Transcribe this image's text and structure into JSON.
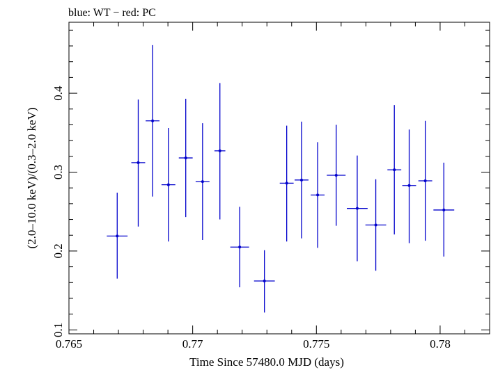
{
  "chart_data": {
    "type": "scatter",
    "title": "blue: WT − red: PC",
    "xlabel": "Time Since 57480.0 MJD (days)",
    "ylabel": "(2.0–10.0 keV)/(0.3–2.0 keV)",
    "xlim": [
      0.765,
      0.782
    ],
    "ylim": [
      0.095,
      0.49
    ],
    "x_ticks": [
      {
        "value": 0.765,
        "label": "0.765"
      },
      {
        "value": 0.77,
        "label": "0.77"
      },
      {
        "value": 0.775,
        "label": "0.775"
      },
      {
        "value": 0.78,
        "label": "0.78"
      }
    ],
    "y_ticks": [
      {
        "value": 0.1,
        "label": "0.1"
      },
      {
        "value": 0.2,
        "label": "0.2"
      },
      {
        "value": 0.3,
        "label": "0.3"
      },
      {
        "value": 0.4,
        "label": "0.4"
      }
    ],
    "grid": false,
    "series": [
      {
        "color": "#0000cc",
        "points": [
          {
            "x": 0.76695,
            "xerr": 0.00042,
            "y": 0.219,
            "ylo": 0.165,
            "yhi": 0.274
          },
          {
            "x": 0.7678,
            "xerr": 0.00028,
            "y": 0.312,
            "ylo": 0.231,
            "yhi": 0.392
          },
          {
            "x": 0.76838,
            "xerr": 0.00028,
            "y": 0.365,
            "ylo": 0.269,
            "yhi": 0.461
          },
          {
            "x": 0.76902,
            "xerr": 0.00028,
            "y": 0.284,
            "ylo": 0.212,
            "yhi": 0.356
          },
          {
            "x": 0.76972,
            "xerr": 0.00028,
            "y": 0.318,
            "ylo": 0.243,
            "yhi": 0.393
          },
          {
            "x": 0.7704,
            "xerr": 0.00028,
            "y": 0.288,
            "ylo": 0.214,
            "yhi": 0.362
          },
          {
            "x": 0.7711,
            "xerr": 0.00022,
            "y": 0.327,
            "ylo": 0.24,
            "yhi": 0.413
          },
          {
            "x": 0.7719,
            "xerr": 0.00038,
            "y": 0.205,
            "ylo": 0.154,
            "yhi": 0.256
          },
          {
            "x": 0.7729,
            "xerr": 0.00042,
            "y": 0.162,
            "ylo": 0.122,
            "yhi": 0.201
          },
          {
            "x": 0.7738,
            "xerr": 0.00028,
            "y": 0.286,
            "ylo": 0.212,
            "yhi": 0.359
          },
          {
            "x": 0.7744,
            "xerr": 0.00028,
            "y": 0.29,
            "ylo": 0.216,
            "yhi": 0.364
          },
          {
            "x": 0.77505,
            "xerr": 0.00028,
            "y": 0.271,
            "ylo": 0.204,
            "yhi": 0.338
          },
          {
            "x": 0.7758,
            "xerr": 0.00038,
            "y": 0.296,
            "ylo": 0.232,
            "yhi": 0.36
          },
          {
            "x": 0.77665,
            "xerr": 0.00042,
            "y": 0.254,
            "ylo": 0.187,
            "yhi": 0.321
          },
          {
            "x": 0.7774,
            "xerr": 0.00042,
            "y": 0.233,
            "ylo": 0.175,
            "yhi": 0.291
          },
          {
            "x": 0.77815,
            "xerr": 0.00028,
            "y": 0.303,
            "ylo": 0.221,
            "yhi": 0.385
          },
          {
            "x": 0.77875,
            "xerr": 0.00028,
            "y": 0.283,
            "ylo": 0.21,
            "yhi": 0.354
          },
          {
            "x": 0.7794,
            "xerr": 0.00028,
            "y": 0.289,
            "ylo": 0.213,
            "yhi": 0.365
          },
          {
            "x": 0.78015,
            "xerr": 0.00042,
            "y": 0.252,
            "ylo": 0.193,
            "yhi": 0.312
          }
        ]
      }
    ]
  }
}
